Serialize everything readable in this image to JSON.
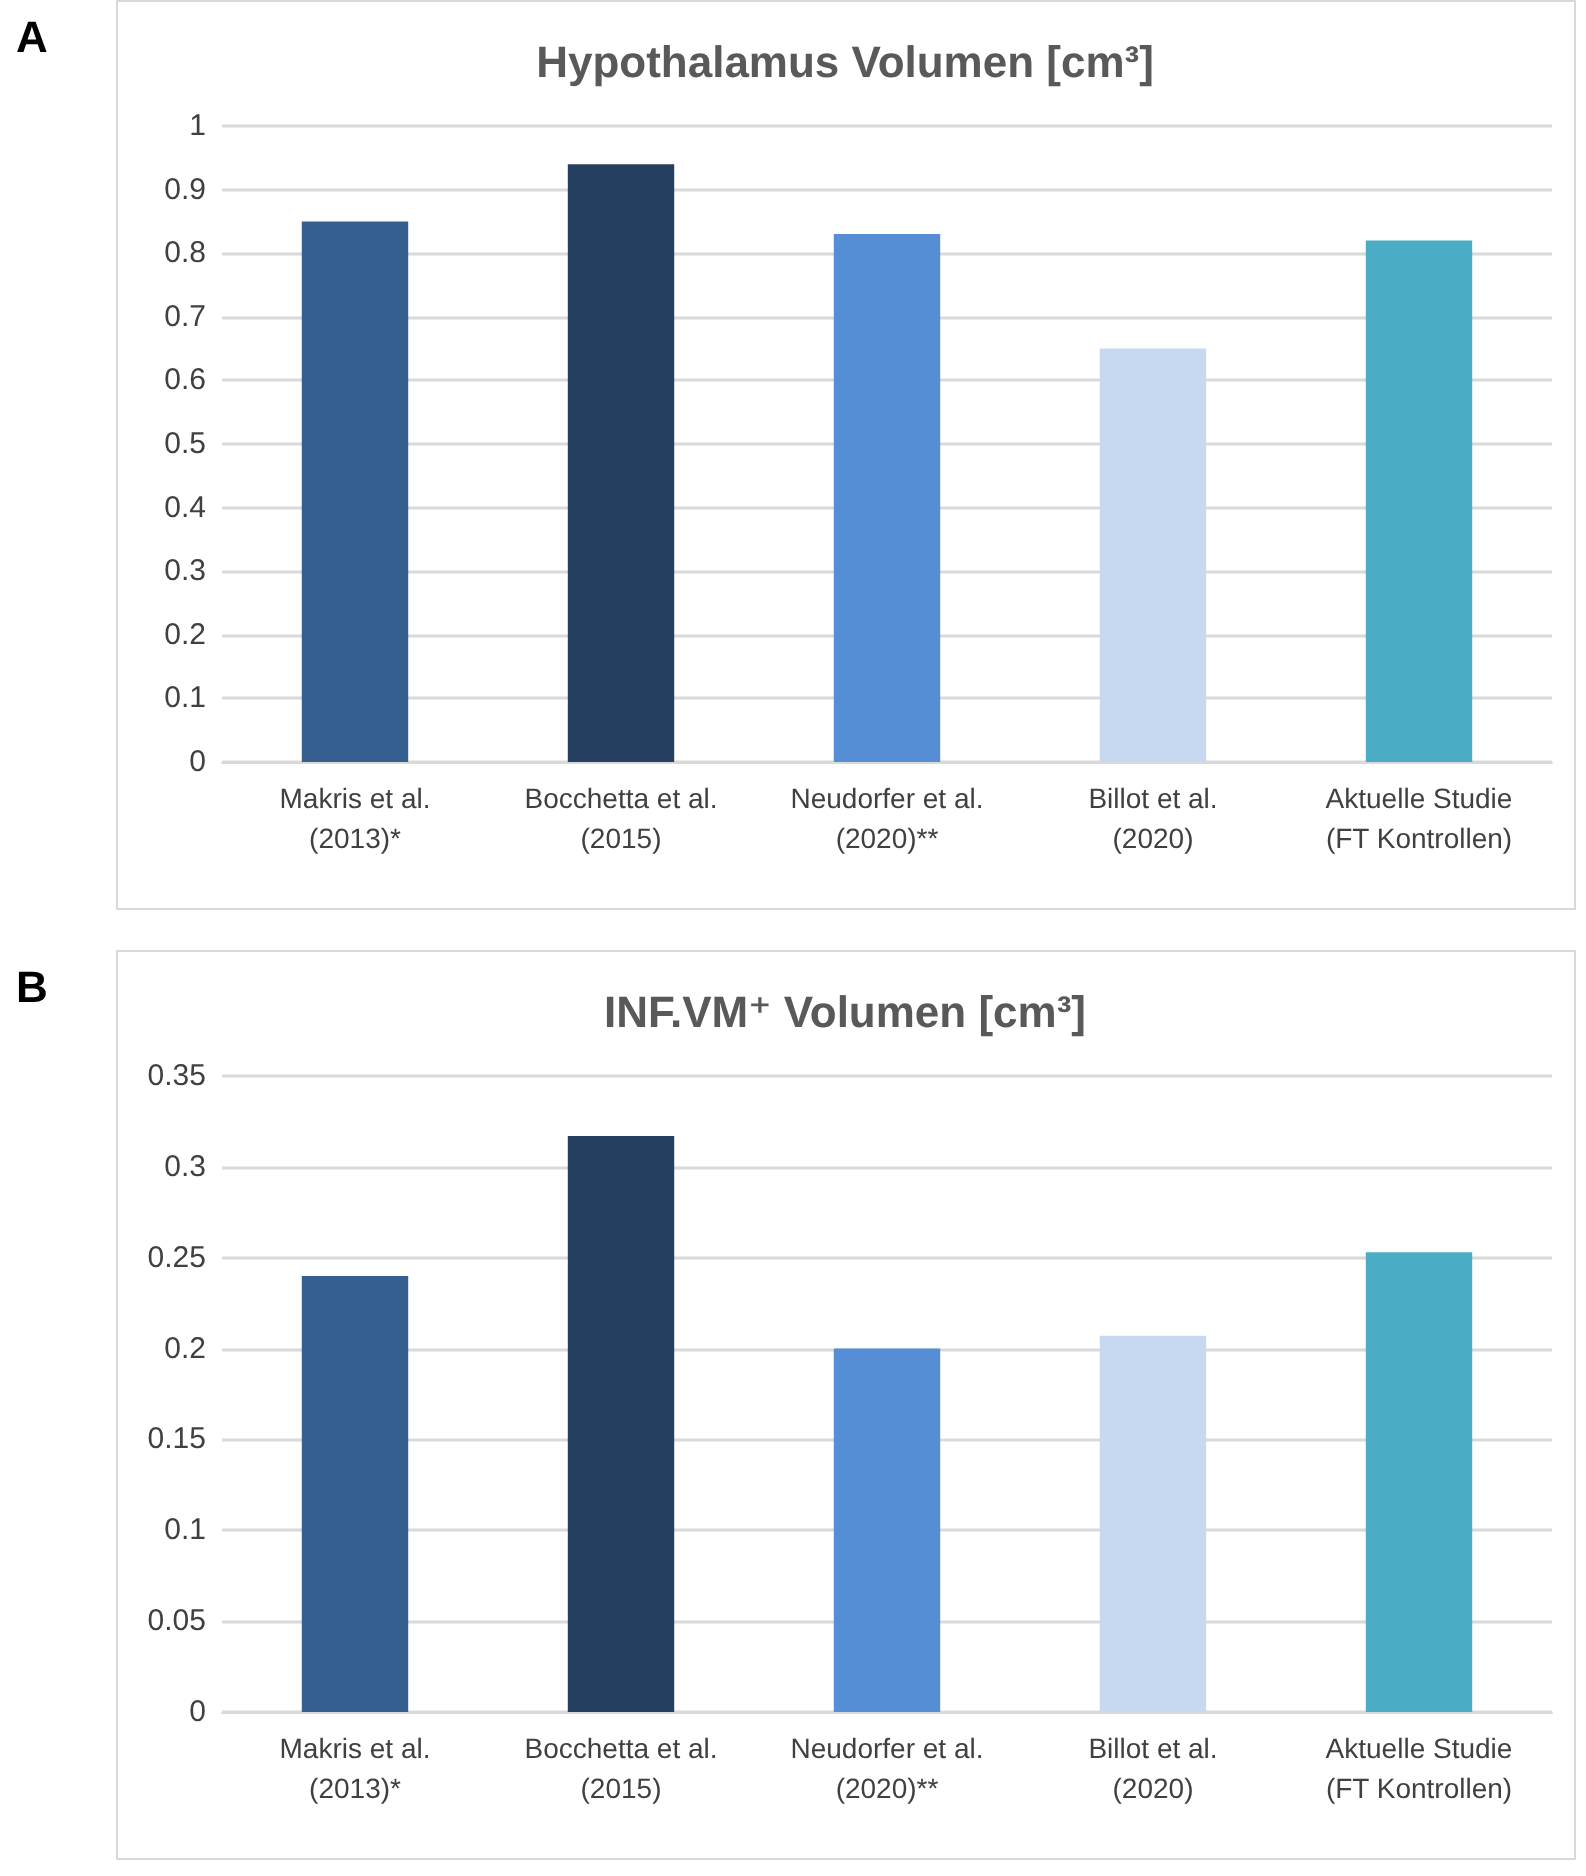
{
  "chart_data": [
    {
      "type": "bar",
      "title": "Hypothalamus Volumen [cm³]",
      "annotations": [
        "A"
      ],
      "categories": [
        "Makris et al.\n(2013)*",
        "Bocchetta et al.\n(2015)",
        "Neudorfer et al.\n(2020)**",
        "Billot et al.\n(2020)",
        "Aktuelle Studie\n(FT Kontrollen)"
      ],
      "values": [
        0.85,
        0.94,
        0.83,
        0.65,
        0.82
      ],
      "colors": [
        "#355f8f",
        "#243f60",
        "#558ed5",
        "#c6d9f0",
        "#4bacc6"
      ],
      "ylim": [
        0,
        1
      ],
      "yticks": [
        0,
        0.1,
        0.2,
        0.3,
        0.4,
        0.5,
        0.6,
        0.7,
        0.8,
        0.9,
        1
      ],
      "grid": "y"
    },
    {
      "type": "bar",
      "title": "INF.VM⁺ Volumen [cm³]",
      "annotations": [
        "B"
      ],
      "categories": [
        "Makris et al.\n(2013)*",
        "Bocchetta et al.\n(2015)",
        "Neudorfer et al.\n(2020)**",
        "Billot et al.\n(2020)",
        "Aktuelle Studie\n(FT Kontrollen)"
      ],
      "values": [
        0.24,
        0.317,
        0.2,
        0.207,
        0.253
      ],
      "colors": [
        "#355f8f",
        "#243f60",
        "#558ed5",
        "#c6d9f0",
        "#4bacc6"
      ],
      "ylim": [
        0,
        0.35
      ],
      "yticks": [
        0,
        0.05,
        0.1,
        0.15,
        0.2,
        0.25,
        0.3,
        0.35
      ],
      "grid": "y"
    }
  ]
}
